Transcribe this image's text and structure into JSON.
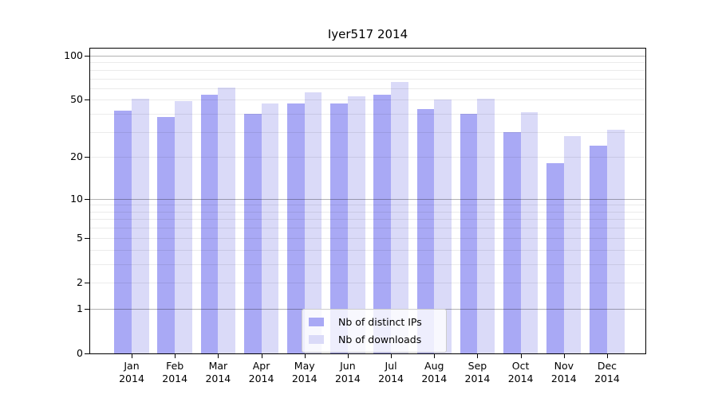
{
  "title": "Iyer517 2014",
  "colors": {
    "bar_ips": "#a9a9f5",
    "bar_downloads": "#dadaf8",
    "grid_major": "rgba(0,0,0,0.30)",
    "grid_minor": "rgba(0,0,0,0.08)",
    "axis_line": "#000000",
    "legend_bg": "rgba(255,255,255,0.8)",
    "legend_border": "#cccccc",
    "text": "#000000"
  },
  "chart_data": {
    "type": "bar",
    "title": "Iyer517 2014",
    "categories": [
      "Jan 2014",
      "Feb 2014",
      "Mar 2014",
      "Apr 2014",
      "May 2014",
      "Jun 2014",
      "Jul 2014",
      "Aug 2014",
      "Sep 2014",
      "Oct 2014",
      "Nov 2014",
      "Dec 2014"
    ],
    "series": [
      {
        "name": "Nb of distinct IPs",
        "values": [
          42,
          38,
          54,
          40,
          47,
          47,
          54,
          43,
          40,
          30,
          18,
          24
        ]
      },
      {
        "name": "Nb of downloads",
        "values": [
          51,
          49,
          61,
          47,
          56,
          53,
          66,
          50,
          51,
          41,
          28,
          31
        ]
      }
    ],
    "y_scale": "log10(value+1)",
    "y_ticks": [
      100,
      50,
      20,
      10,
      5,
      2,
      1,
      0
    ],
    "y_major_gridlines": [
      100,
      10,
      1
    ],
    "y_minor_gridlines": [
      2,
      3,
      4,
      5,
      6,
      7,
      8,
      9,
      20,
      30,
      40,
      50,
      60,
      70,
      80,
      90
    ],
    "ylim": [
      0,
      112
    ],
    "grid": true,
    "legend_position": "lower center"
  }
}
